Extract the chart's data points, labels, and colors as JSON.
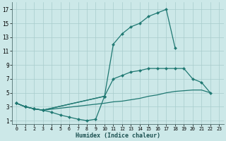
{
  "xlabel": "Humidex (Indice chaleur)",
  "bg_color": "#cce8e8",
  "line_color": "#1f7872",
  "grid_color": "#a8cccc",
  "xlim": [
    -0.5,
    23.5
  ],
  "ylim": [
    0.5,
    18
  ],
  "xticks": [
    0,
    1,
    2,
    3,
    4,
    5,
    6,
    7,
    8,
    9,
    10,
    11,
    12,
    13,
    14,
    15,
    16,
    17,
    18,
    19,
    20,
    21,
    22,
    23
  ],
  "yticks": [
    1,
    3,
    5,
    7,
    9,
    11,
    13,
    15,
    17
  ],
  "curve_high_x": [
    0,
    1,
    2,
    3,
    10,
    11,
    12,
    13,
    14,
    15,
    16,
    17,
    18
  ],
  "curve_high_y": [
    3.5,
    3.0,
    2.7,
    2.5,
    4.5,
    12.0,
    13.5,
    14.5,
    15.0,
    16.0,
    16.5,
    17.0,
    11.5
  ],
  "curve_mid_x": [
    0,
    1,
    2,
    3,
    10,
    11,
    12,
    13,
    14,
    15,
    16,
    17,
    18,
    19,
    20,
    21,
    22
  ],
  "curve_mid_y": [
    3.5,
    3.0,
    2.7,
    2.5,
    4.5,
    7.0,
    7.5,
    8.0,
    8.2,
    8.5,
    8.5,
    8.5,
    8.5,
    8.5,
    7.0,
    6.5,
    5.0
  ],
  "curve_low_x": [
    0,
    1,
    2,
    3,
    10,
    11,
    12,
    13,
    14,
    15,
    16,
    17,
    18,
    19,
    20,
    21,
    22
  ],
  "curve_low_y": [
    3.5,
    3.0,
    2.7,
    2.5,
    3.5,
    3.7,
    3.8,
    4.0,
    4.2,
    4.5,
    4.7,
    5.0,
    5.2,
    5.3,
    5.4,
    5.4,
    5.0
  ],
  "curve_dip_x": [
    0,
    1,
    2,
    3,
    4,
    5,
    6,
    7,
    8,
    9,
    10
  ],
  "curve_dip_y": [
    3.5,
    3.0,
    2.7,
    2.5,
    2.2,
    1.8,
    1.5,
    1.2,
    1.0,
    1.2,
    4.5
  ]
}
